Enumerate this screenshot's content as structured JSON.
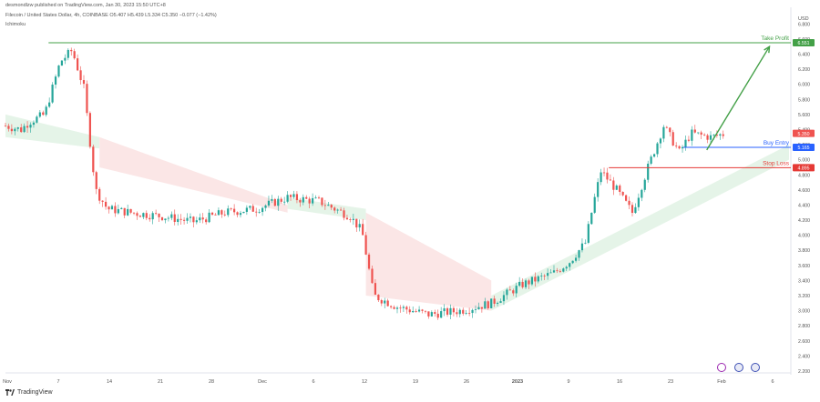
{
  "header": {
    "published": "desmondlzw published on TradingView.com, Jan 30, 2023 15:50 UTC+8",
    "symbol_line": "Filecoin / United States Dollar, 4h, COINBASE  O5.407  H5.439  L5.334  C5.350  −0.077 (−1.42%)",
    "indicator": "Ichimoku"
  },
  "footer": {
    "brand": "TradingView"
  },
  "colors": {
    "up": "#26a69a",
    "down": "#ef5350",
    "take_profit": "#43a047",
    "buy_entry": "#2962ff",
    "stop_loss": "#e53935",
    "cloud_green": "#e2f3e6",
    "cloud_red": "#fbe3e3"
  },
  "chart_data": {
    "type": "candlestick",
    "currency": "USD",
    "ylim": [
      2.2,
      6.9
    ],
    "y_ticks": [
      6.8,
      6.6,
      6.4,
      6.2,
      6.0,
      5.8,
      5.6,
      5.4,
      5.2,
      5.0,
      4.8,
      4.6,
      4.4,
      4.2,
      4.0,
      3.8,
      3.6,
      3.4,
      3.2,
      3.0,
      2.8,
      2.6,
      2.4,
      2.2
    ],
    "x_ticks": [
      "Nov",
      "7",
      "14",
      "21",
      "28",
      "Dec",
      "6",
      "12",
      "19",
      "26",
      "2023",
      "9",
      "16",
      "23",
      "Feb",
      "6"
    ],
    "levels": [
      {
        "name": "Take Profit",
        "value": 6.551,
        "label": "6.551"
      },
      {
        "name": "Buy Entry",
        "value": 5.165,
        "label": "5.165"
      },
      {
        "name": "Stop Loss",
        "value": 4.895,
        "label": "4.895"
      }
    ],
    "last_price": {
      "value": 5.35,
      "label": "5.350"
    },
    "projection": {
      "from": 5.13,
      "to": 6.5
    },
    "price_path": [
      [
        0,
        5.45
      ],
      [
        0.02,
        5.4
      ],
      [
        0.03,
        5.5
      ],
      [
        0.05,
        5.6
      ],
      [
        0.07,
        6.3
      ],
      [
        0.085,
        6.45
      ],
      [
        0.1,
        5.95
      ],
      [
        0.115,
        4.6
      ],
      [
        0.13,
        4.35
      ],
      [
        0.16,
        4.3
      ],
      [
        0.2,
        4.25
      ],
      [
        0.24,
        4.18
      ],
      [
        0.28,
        4.3
      ],
      [
        0.32,
        4.35
      ],
      [
        0.36,
        4.5
      ],
      [
        0.4,
        4.45
      ],
      [
        0.44,
        4.25
      ],
      [
        0.455,
        4.05
      ],
      [
        0.47,
        3.2
      ],
      [
        0.5,
        3.05
      ],
      [
        0.54,
        2.95
      ],
      [
        0.58,
        3.0
      ],
      [
        0.62,
        3.1
      ],
      [
        0.66,
        3.35
      ],
      [
        0.7,
        3.5
      ],
      [
        0.72,
        3.65
      ],
      [
        0.74,
        3.9
      ],
      [
        0.75,
        4.4
      ],
      [
        0.76,
        4.85
      ],
      [
        0.78,
        4.6
      ],
      [
        0.8,
        4.3
      ],
      [
        0.82,
        4.9
      ],
      [
        0.84,
        5.45
      ],
      [
        0.86,
        5.1
      ],
      [
        0.875,
        5.35
      ],
      [
        0.9,
        5.3
      ],
      [
        0.92,
        5.35
      ]
    ],
    "cloud_segments": [
      {
        "x": [
          0.0,
          0.12
        ],
        "top": [
          5.6,
          5.3
        ],
        "bottom": [
          5.3,
          5.15
        ],
        "color": "green"
      },
      {
        "x": [
          0.12,
          0.36
        ],
        "top": [
          5.3,
          4.4
        ],
        "bottom": [
          4.9,
          4.3
        ],
        "color": "red"
      },
      {
        "x": [
          0.36,
          0.46
        ],
        "top": [
          4.5,
          4.35
        ],
        "bottom": [
          4.35,
          4.2
        ],
        "color": "green"
      },
      {
        "x": [
          0.46,
          0.62
        ],
        "top": [
          4.3,
          3.4
        ],
        "bottom": [
          3.2,
          3.0
        ],
        "color": "red"
      },
      {
        "x": [
          0.62,
          1.0
        ],
        "top": [
          3.2,
          5.2
        ],
        "bottom": [
          3.0,
          5.0
        ],
        "color": "green"
      }
    ]
  }
}
